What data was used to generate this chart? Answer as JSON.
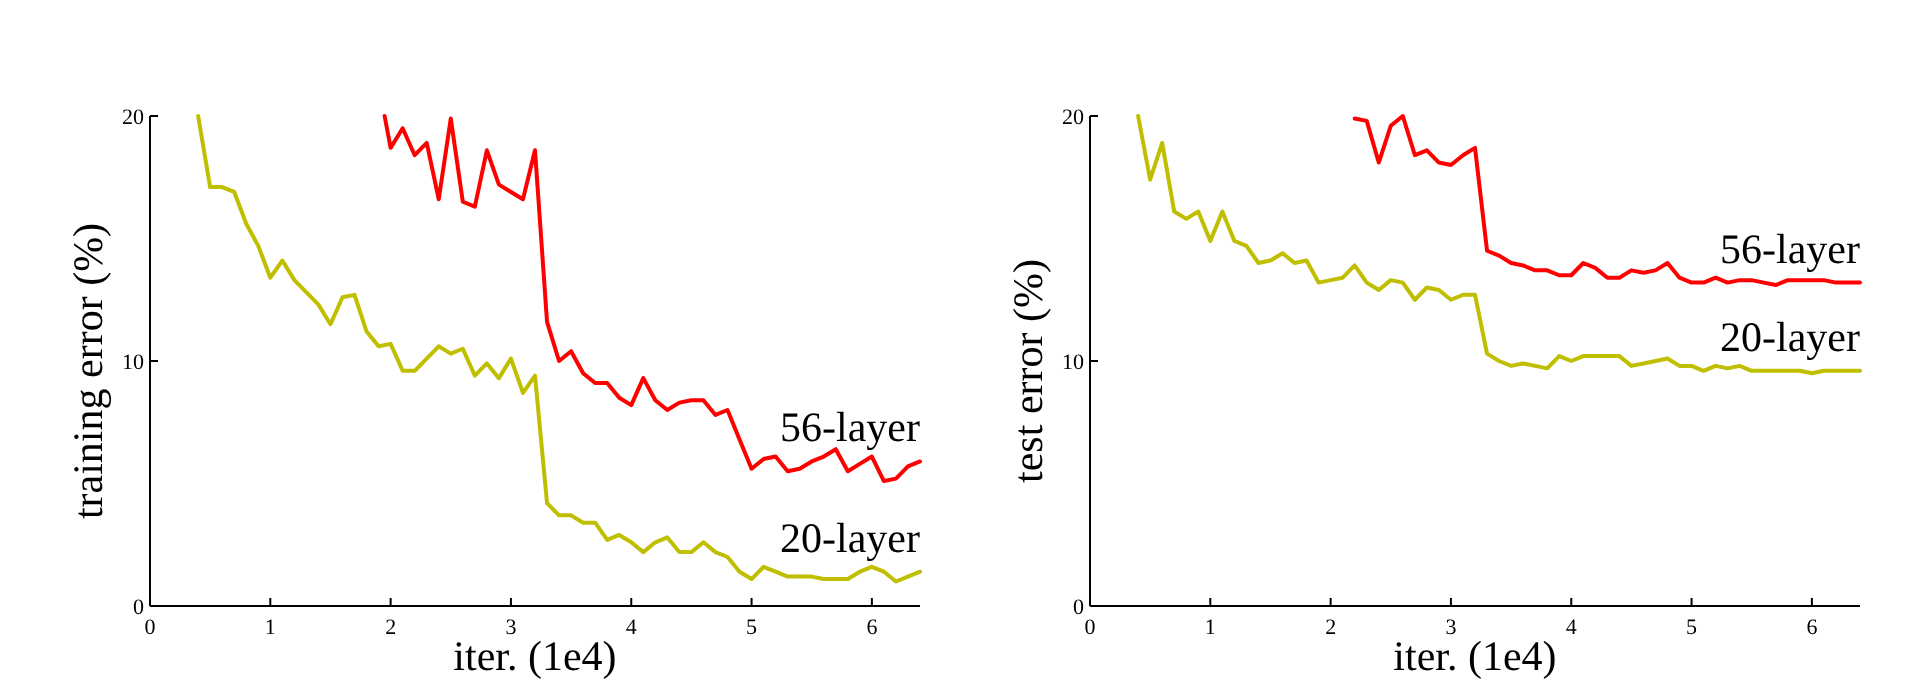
{
  "chart_data": [
    {
      "type": "line",
      "xlabel": "iter. (1e4)",
      "ylabel": "training error (%)",
      "xlim": [
        0,
        6.4
      ],
      "ylim": [
        0,
        20
      ],
      "xticks": [
        0,
        1,
        2,
        3,
        4,
        5,
        6
      ],
      "yticks": [
        0,
        10,
        20
      ],
      "series": [
        {
          "name": "56-layer",
          "color": "#ff0000",
          "x": [
            1.95,
            2.0,
            2.1,
            2.2,
            2.3,
            2.4,
            2.5,
            2.6,
            2.7,
            2.8,
            2.9,
            3.0,
            3.1,
            3.2,
            3.3,
            3.4,
            3.5,
            3.6,
            3.7,
            3.8,
            3.9,
            4.0,
            4.1,
            4.2,
            4.3,
            4.4,
            4.5,
            4.6,
            4.7,
            4.8,
            4.9,
            5.0,
            5.1,
            5.2,
            5.3,
            5.4,
            5.5,
            5.6,
            5.7,
            5.8,
            5.9,
            6.0,
            6.1,
            6.2,
            6.3,
            6.4
          ],
          "values": [
            20,
            18.7,
            19.5,
            18.4,
            18.9,
            16.6,
            19.9,
            16.5,
            16.3,
            18.6,
            17.2,
            16.9,
            16.6,
            18.6,
            11.6,
            10.0,
            10.4,
            9.5,
            9.1,
            9.1,
            8.5,
            8.2,
            9.3,
            8.4,
            8.0,
            8.3,
            8.4,
            8.4,
            7.8,
            8.0,
            6.8,
            5.6,
            6.0,
            6.1,
            5.5,
            5.6,
            5.9,
            6.1,
            6.4,
            5.5,
            5.8,
            6.1,
            5.1,
            5.2,
            5.7,
            5.9
          ]
        },
        {
          "name": "20-layer",
          "color": "#bfbf00",
          "x": [
            0.4,
            0.5,
            0.6,
            0.7,
            0.8,
            0.9,
            1.0,
            1.1,
            1.2,
            1.3,
            1.4,
            1.5,
            1.6,
            1.7,
            1.8,
            1.9,
            2.0,
            2.1,
            2.2,
            2.3,
            2.4,
            2.5,
            2.6,
            2.7,
            2.8,
            2.9,
            3.0,
            3.1,
            3.2,
            3.3,
            3.4,
            3.5,
            3.6,
            3.7,
            3.8,
            3.9,
            4.0,
            4.1,
            4.2,
            4.3,
            4.4,
            4.5,
            4.6,
            4.7,
            4.8,
            4.9,
            5.0,
            5.1,
            5.2,
            5.3,
            5.4,
            5.5,
            5.6,
            5.7,
            5.8,
            5.9,
            6.0,
            6.1,
            6.2,
            6.3,
            6.4
          ],
          "values": [
            20,
            17.1,
            17.1,
            16.9,
            15.6,
            14.7,
            13.4,
            14.1,
            13.3,
            12.8,
            12.3,
            11.5,
            12.6,
            12.7,
            11.2,
            10.6,
            10.7,
            9.6,
            9.6,
            10.1,
            10.6,
            10.3,
            10.5,
            9.4,
            9.9,
            9.3,
            10.1,
            8.7,
            9.4,
            4.2,
            3.7,
            3.7,
            3.4,
            3.4,
            2.7,
            2.9,
            2.6,
            2.2,
            2.6,
            2.8,
            2.2,
            2.2,
            2.6,
            2.2,
            2.0,
            1.4,
            1.1,
            1.6,
            1.4,
            1.2,
            1.2,
            1.2,
            1.1,
            1.1,
            1.1,
            1.4,
            1.6,
            1.4,
            1.0,
            1.2,
            1.4
          ]
        }
      ]
    },
    {
      "type": "line",
      "xlabel": "iter. (1e4)",
      "ylabel": "test error (%)",
      "xlim": [
        0,
        6.4
      ],
      "ylim": [
        0,
        20
      ],
      "xticks": [
        0,
        1,
        2,
        3,
        4,
        5,
        6
      ],
      "yticks": [
        0,
        10,
        20
      ],
      "series": [
        {
          "name": "56-layer",
          "color": "#ff0000",
          "x": [
            2.2,
            2.3,
            2.4,
            2.5,
            2.6,
            2.7,
            2.8,
            2.9,
            3.0,
            3.1,
            3.2,
            3.3,
            3.4,
            3.5,
            3.6,
            3.7,
            3.8,
            3.9,
            4.0,
            4.1,
            4.2,
            4.3,
            4.4,
            4.5,
            4.6,
            4.7,
            4.8,
            4.9,
            5.0,
            5.1,
            5.2,
            5.3,
            5.4,
            5.5,
            5.6,
            5.7,
            5.8,
            5.9,
            6.0,
            6.1,
            6.2,
            6.3,
            6.4
          ],
          "values": [
            19.9,
            19.8,
            18.1,
            19.6,
            20.0,
            18.4,
            18.6,
            18.1,
            18.0,
            18.4,
            18.7,
            14.5,
            14.3,
            14.0,
            13.9,
            13.7,
            13.7,
            13.5,
            13.5,
            14.0,
            13.8,
            13.4,
            13.4,
            13.7,
            13.6,
            13.7,
            14.0,
            13.4,
            13.2,
            13.2,
            13.4,
            13.2,
            13.3,
            13.3,
            13.2,
            13.1,
            13.3,
            13.3,
            13.3,
            13.3,
            13.2,
            13.2,
            13.2
          ]
        },
        {
          "name": "20-layer",
          "color": "#bfbf00",
          "x": [
            0.4,
            0.5,
            0.6,
            0.7,
            0.8,
            0.9,
            1.0,
            1.1,
            1.2,
            1.3,
            1.4,
            1.5,
            1.6,
            1.7,
            1.8,
            1.9,
            2.0,
            2.1,
            2.2,
            2.3,
            2.4,
            2.5,
            2.6,
            2.7,
            2.8,
            2.9,
            3.0,
            3.1,
            3.2,
            3.3,
            3.4,
            3.5,
            3.6,
            3.7,
            3.8,
            3.9,
            4.0,
            4.1,
            4.2,
            4.3,
            4.4,
            4.5,
            4.6,
            4.7,
            4.8,
            4.9,
            5.0,
            5.1,
            5.2,
            5.3,
            5.4,
            5.5,
            5.6,
            5.7,
            5.8,
            5.9,
            6.0,
            6.1,
            6.2,
            6.3,
            6.4
          ],
          "values": [
            20,
            17.4,
            18.9,
            16.1,
            15.8,
            16.1,
            14.9,
            16.1,
            14.9,
            14.7,
            14.0,
            14.1,
            14.4,
            14.0,
            14.1,
            13.2,
            13.3,
            13.4,
            13.9,
            13.2,
            12.9,
            13.3,
            13.2,
            12.5,
            13.0,
            12.9,
            12.5,
            12.7,
            12.7,
            10.3,
            10.0,
            9.8,
            9.9,
            9.8,
            9.7,
            10.2,
            10.0,
            10.2,
            10.2,
            10.2,
            10.2,
            9.8,
            9.9,
            10.0,
            10.1,
            9.8,
            9.8,
            9.6,
            9.8,
            9.7,
            9.8,
            9.6,
            9.6,
            9.6,
            9.6,
            9.6,
            9.5,
            9.6,
            9.6,
            9.6,
            9.6
          ]
        }
      ]
    }
  ]
}
